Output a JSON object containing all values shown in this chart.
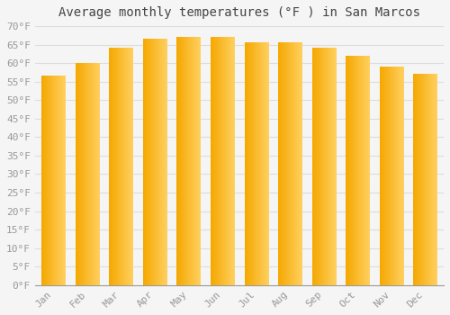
{
  "title": "Average monthly temperatures (°F ) in San Marcos",
  "months": [
    "Jan",
    "Feb",
    "Mar",
    "Apr",
    "May",
    "Jun",
    "Jul",
    "Aug",
    "Sep",
    "Oct",
    "Nov",
    "Dec"
  ],
  "values": [
    56.5,
    60.0,
    64.0,
    66.5,
    67.0,
    67.0,
    65.5,
    65.5,
    64.0,
    62.0,
    59.0,
    57.0
  ],
  "bar_color_left": "#F5A800",
  "bar_color_right": "#FFD060",
  "background_color": "#F5F5F5",
  "grid_color": "#DDDDDD",
  "ylim": [
    0,
    70
  ],
  "yticks": [
    0,
    5,
    10,
    15,
    20,
    25,
    30,
    35,
    40,
    45,
    50,
    55,
    60,
    65,
    70
  ],
  "ylabel_suffix": "°F",
  "title_fontsize": 10,
  "tick_fontsize": 8,
  "font_family": "monospace"
}
